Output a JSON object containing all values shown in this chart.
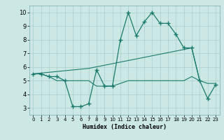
{
  "line1_x": [
    0,
    1,
    2,
    3,
    4,
    5,
    6,
    7,
    8,
    9,
    10,
    11,
    12,
    13,
    14,
    15,
    16,
    17,
    18,
    19,
    20,
    21,
    22,
    23
  ],
  "line1_y": [
    5.5,
    5.5,
    5.3,
    5.3,
    5.0,
    3.1,
    3.1,
    3.3,
    5.8,
    4.6,
    4.6,
    8.0,
    10.0,
    8.3,
    9.3,
    10.0,
    9.2,
    9.2,
    8.4,
    7.4,
    7.4,
    5.0,
    3.7,
    4.7
  ],
  "line2_x": [
    0,
    7,
    20,
    21
  ],
  "line2_y": [
    5.5,
    5.9,
    7.4,
    5.0
  ],
  "line3_x": [
    0,
    1,
    2,
    3,
    4,
    5,
    6,
    7,
    8,
    9,
    10,
    11,
    12,
    13,
    14,
    15,
    16,
    17,
    18,
    19,
    20,
    21,
    22,
    23
  ],
  "line3_y": [
    5.5,
    5.5,
    5.3,
    5.0,
    5.0,
    5.0,
    5.0,
    5.0,
    4.6,
    4.6,
    4.6,
    4.8,
    5.0,
    5.0,
    5.0,
    5.0,
    5.0,
    5.0,
    5.0,
    5.0,
    5.3,
    5.0,
    4.8,
    4.8
  ],
  "color": "#1a7a6e",
  "bg_color": "#cce8e5",
  "grid_color": "#aacfcc",
  "xlabel": "Humidex (Indice chaleur)",
  "xlim": [
    -0.5,
    23.5
  ],
  "ylim": [
    2.5,
    10.5
  ],
  "yticks": [
    3,
    4,
    5,
    6,
    7,
    8,
    9,
    10
  ],
  "xticks": [
    0,
    1,
    2,
    3,
    4,
    5,
    6,
    7,
    8,
    9,
    10,
    11,
    12,
    13,
    14,
    15,
    16,
    17,
    18,
    19,
    20,
    21,
    22,
    23
  ]
}
